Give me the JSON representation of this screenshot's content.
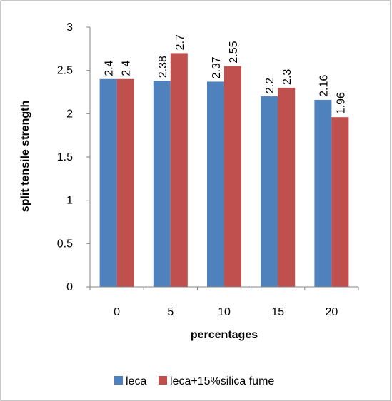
{
  "chart_data": {
    "type": "bar",
    "title": "",
    "xlabel": "percentages",
    "ylabel": "split tensile strength",
    "categories": [
      "0",
      "5",
      "10",
      "15",
      "20"
    ],
    "series": [
      {
        "name": "leca",
        "values": [
          2.4,
          2.38,
          2.37,
          2.2,
          2.16
        ],
        "color": "#4F81BD"
      },
      {
        "name": "leca+15%silica fume",
        "values": [
          2.4,
          2.7,
          2.55,
          2.3,
          1.96
        ],
        "color": "#C0504D"
      }
    ],
    "data_labels": [
      [
        "2.4",
        "2.38",
        "2.37",
        "2.2",
        "2.16"
      ],
      [
        "2.4",
        "2.7",
        "2.55",
        "2.3",
        "1.96"
      ]
    ],
    "y_ticks": [
      "0",
      "0.5",
      "1",
      "1.5",
      "2",
      "2.5",
      "3"
    ],
    "ylim": [
      0,
      3
    ],
    "grid": false,
    "legend_position": "bottom"
  }
}
